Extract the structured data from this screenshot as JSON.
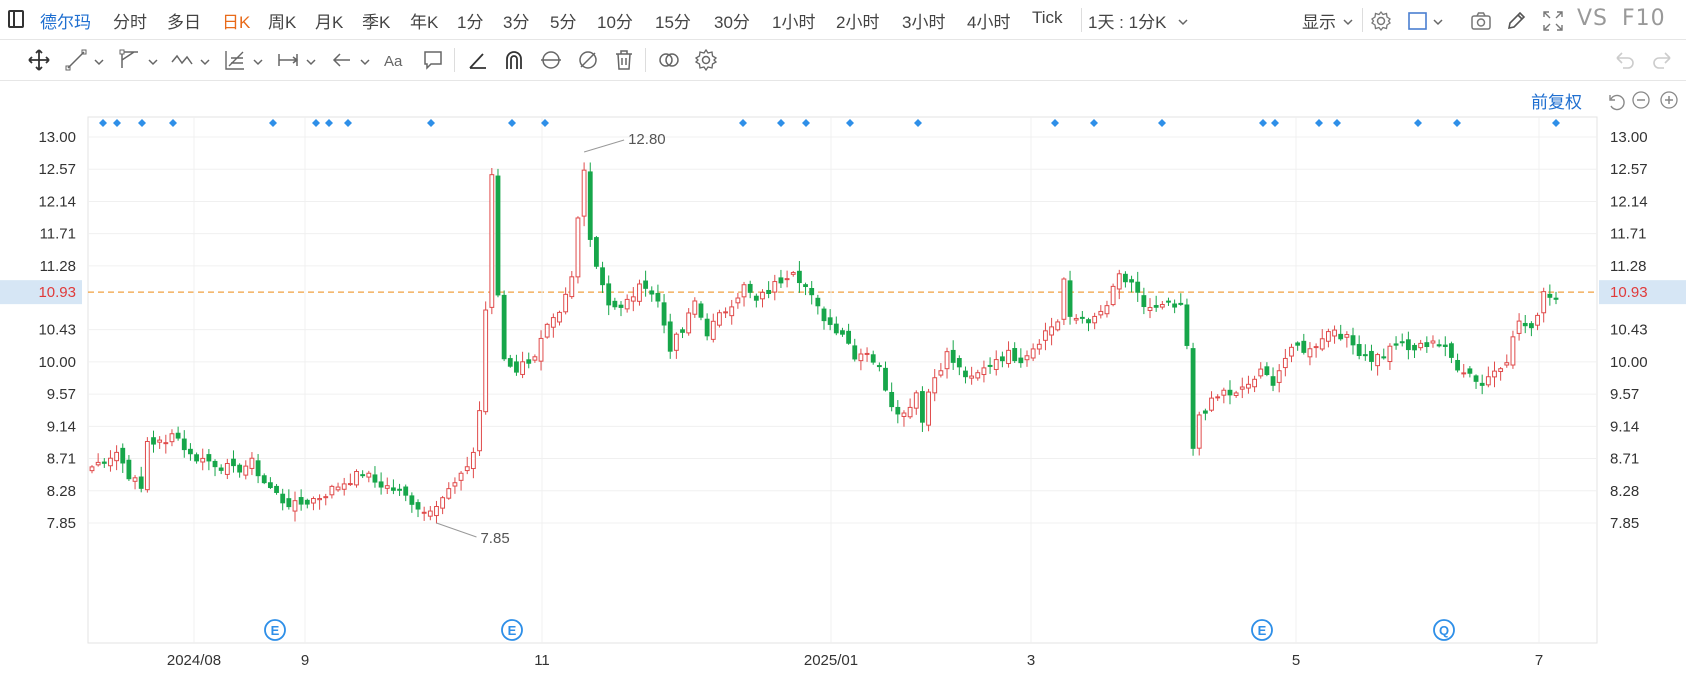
{
  "topbar": {
    "stock_name": "德尔玛",
    "periods": [
      "分时",
      "多日",
      "日K",
      "周K",
      "月K",
      "季K",
      "年K",
      "1分",
      "3分",
      "5分",
      "10分",
      "15分",
      "30分",
      "1小时",
      "2小时",
      "3小时",
      "4小时",
      "Tick"
    ],
    "active_period": "日K",
    "range_select": "1天 : 1分K",
    "display_label": "显示",
    "vs_label": "VS",
    "f10_label": "F10"
  },
  "chart_header": {
    "adjust_label": "前复权"
  },
  "colors": {
    "up": "#e04b4b",
    "down": "#17a64a",
    "accent": "#1f6fd0",
    "price_line": "#f0a040",
    "price_tag_bg": "#d6e6f5",
    "marker": "#2e8fe8"
  },
  "chart_data": {
    "type": "candlestick",
    "y_ticks": [
      "13.00",
      "12.57",
      "12.14",
      "11.71",
      "11.28",
      "10.93",
      "10.43",
      "10.00",
      "9.57",
      "9.14",
      "8.71",
      "8.28",
      "7.85"
    ],
    "ylim": [
      7.5,
      13.2
    ],
    "x_labels": [
      "2024/08",
      "9",
      "11",
      "2025/01",
      "3",
      "5",
      "7"
    ],
    "current_price": "10.93",
    "high_annotation": "12.80",
    "low_annotation": "7.85",
    "event_badges": [
      "E",
      "E",
      "E",
      "Q"
    ],
    "anchors": [
      [
        0,
        8.6
      ],
      [
        4,
        8.8
      ],
      [
        6,
        8.5
      ],
      [
        8,
        8.3
      ],
      [
        9,
        8.95
      ],
      [
        12,
        8.9
      ],
      [
        13,
        9.1
      ],
      [
        16,
        8.75
      ],
      [
        19,
        8.68
      ],
      [
        23,
        8.55
      ],
      [
        26,
        8.65
      ],
      [
        28,
        8.4
      ],
      [
        31,
        8.15
      ],
      [
        33,
        8.08
      ],
      [
        37,
        8.2
      ],
      [
        40,
        8.35
      ],
      [
        44,
        8.52
      ],
      [
        46,
        8.4
      ],
      [
        49,
        8.3
      ],
      [
        52,
        8.15
      ],
      [
        54,
        8.0
      ],
      [
        57,
        8.2
      ],
      [
        60,
        8.45
      ],
      [
        62,
        8.8
      ],
      [
        63,
        9.35
      ],
      [
        64,
        10.7
      ],
      [
        65,
        12.45
      ],
      [
        66,
        10.9
      ],
      [
        67,
        10.05
      ],
      [
        69,
        9.9
      ],
      [
        72,
        10.1
      ],
      [
        74,
        10.45
      ],
      [
        76,
        10.6
      ],
      [
        78,
        11.1
      ],
      [
        79,
        11.9
      ],
      [
        80,
        12.55
      ],
      [
        81,
        11.7
      ],
      [
        82,
        11.3
      ],
      [
        84,
        10.8
      ],
      [
        86,
        10.7
      ],
      [
        88,
        10.9
      ],
      [
        90,
        11.05
      ],
      [
        92,
        10.8
      ],
      [
        94,
        10.2
      ],
      [
        96,
        10.4
      ],
      [
        98,
        10.8
      ],
      [
        100,
        10.4
      ],
      [
        103,
        10.7
      ],
      [
        106,
        11.0
      ],
      [
        108,
        10.8
      ],
      [
        110,
        10.95
      ],
      [
        112,
        11.1
      ],
      [
        114,
        11.25
      ],
      [
        116,
        11.0
      ],
      [
        118,
        10.7
      ],
      [
        120,
        10.5
      ],
      [
        122,
        10.4
      ],
      [
        124,
        10.1
      ],
      [
        126,
        10.15
      ],
      [
        128,
        9.9
      ],
      [
        130,
        9.45
      ],
      [
        132,
        9.3
      ],
      [
        134,
        9.6
      ],
      [
        135,
        9.25
      ],
      [
        136,
        9.6
      ],
      [
        137,
        9.8
      ],
      [
        139,
        10.1
      ],
      [
        141,
        9.9
      ],
      [
        143,
        9.75
      ],
      [
        145,
        9.9
      ],
      [
        147,
        10.05
      ],
      [
        149,
        10.1
      ],
      [
        151,
        10.05
      ],
      [
        153,
        10.2
      ],
      [
        155,
        10.4
      ],
      [
        157,
        10.55
      ],
      [
        158,
        11.1
      ],
      [
        159,
        10.55
      ],
      [
        161,
        10.6
      ],
      [
        163,
        10.55
      ],
      [
        165,
        10.75
      ],
      [
        167,
        11.15
      ],
      [
        169,
        11.0
      ],
      [
        171,
        10.75
      ],
      [
        173,
        10.7
      ],
      [
        175,
        10.75
      ],
      [
        177,
        10.7
      ],
      [
        178,
        10.2
      ],
      [
        179,
        8.8
      ],
      [
        180,
        9.3
      ],
      [
        182,
        9.45
      ],
      [
        184,
        9.6
      ],
      [
        186,
        9.55
      ],
      [
        188,
        9.7
      ],
      [
        190,
        9.85
      ],
      [
        192,
        9.75
      ],
      [
        194,
        10.05
      ],
      [
        196,
        10.2
      ],
      [
        198,
        10.15
      ],
      [
        200,
        10.35
      ],
      [
        202,
        10.45
      ],
      [
        204,
        10.3
      ],
      [
        206,
        10.15
      ],
      [
        208,
        10.05
      ],
      [
        210,
        10.1
      ],
      [
        212,
        10.25
      ],
      [
        214,
        10.15
      ],
      [
        216,
        10.2
      ],
      [
        218,
        10.3
      ],
      [
        220,
        10.15
      ],
      [
        222,
        9.95
      ],
      [
        224,
        9.85
      ],
      [
        226,
        9.7
      ],
      [
        228,
        9.9
      ],
      [
        230,
        10.05
      ],
      [
        232,
        10.55
      ],
      [
        234,
        10.4
      ],
      [
        236,
        10.95
      ],
      [
        238,
        10.85
      ]
    ],
    "n_bars": 239
  }
}
